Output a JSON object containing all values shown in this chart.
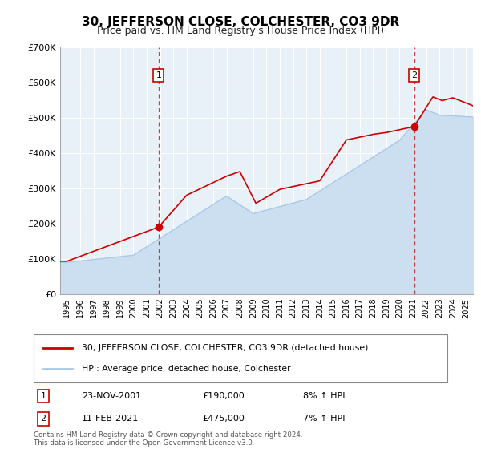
{
  "title": "30, JEFFERSON CLOSE, COLCHESTER, CO3 9DR",
  "subtitle": "Price paid vs. HM Land Registry's House Price Index (HPI)",
  "background_color": "#ffffff",
  "plot_bg_color": "#e8f0f8",
  "grid_color": "#ffffff",
  "line1_color": "#cc0000",
  "line2_color": "#aac8e8",
  "line2_fill_color": "#ccdff0",
  "ylim": [
    0,
    700000
  ],
  "yticks": [
    0,
    100000,
    200000,
    300000,
    400000,
    500000,
    600000,
    700000
  ],
  "ytick_labels": [
    "£0",
    "£100K",
    "£200K",
    "£300K",
    "£400K",
    "£500K",
    "£600K",
    "£700K"
  ],
  "xlim_start": 1994.5,
  "xlim_end": 2025.5,
  "xtick_years": [
    1995,
    1996,
    1997,
    1998,
    1999,
    2000,
    2001,
    2002,
    2003,
    2004,
    2005,
    2006,
    2007,
    2008,
    2009,
    2010,
    2011,
    2012,
    2013,
    2014,
    2015,
    2016,
    2017,
    2018,
    2019,
    2020,
    2021,
    2022,
    2023,
    2024,
    2025
  ],
  "marker1_x": 2001.9,
  "marker1_y": 190000,
  "marker2_x": 2021.1,
  "marker2_y": 475000,
  "vline1_x": 2001.9,
  "vline2_x": 2021.1,
  "legend_label1": "30, JEFFERSON CLOSE, COLCHESTER, CO3 9DR (detached house)",
  "legend_label2": "HPI: Average price, detached house, Colchester",
  "table_row1_num": "1",
  "table_row1_date": "23-NOV-2001",
  "table_row1_price": "£190,000",
  "table_row1_hpi": "8% ↑ HPI",
  "table_row2_num": "2",
  "table_row2_date": "11-FEB-2021",
  "table_row2_price": "£475,000",
  "table_row2_hpi": "7% ↑ HPI",
  "footer": "Contains HM Land Registry data © Crown copyright and database right 2024.\nThis data is licensed under the Open Government Licence v3.0.",
  "title_fontsize": 11,
  "subtitle_fontsize": 9
}
